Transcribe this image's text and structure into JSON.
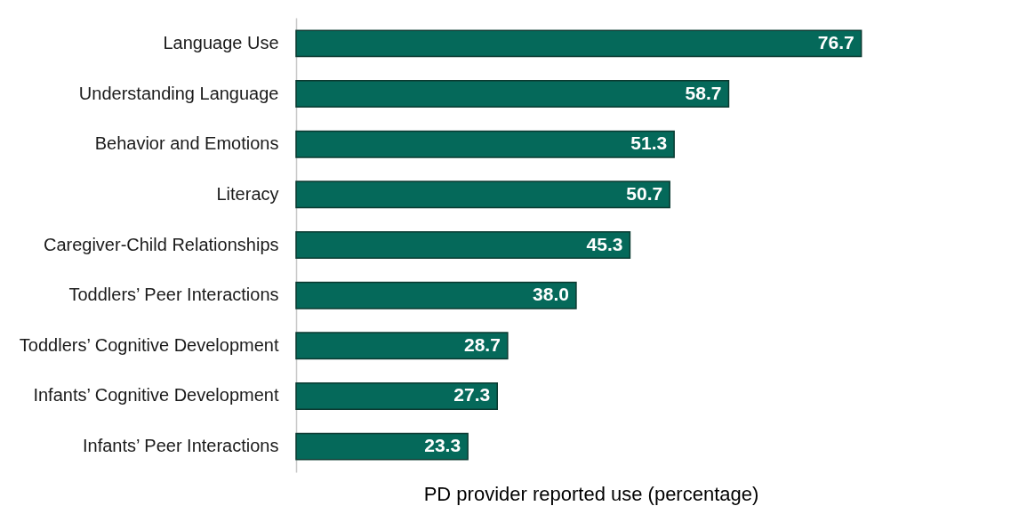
{
  "chart_data": {
    "type": "bar",
    "orientation": "horizontal",
    "xlabel": "PD provider reported use (percentage)",
    "categories": [
      "Language Use",
      "Understanding Language",
      "Behavior and Emotions",
      "Literacy",
      "Caregiver-Child Relationships",
      "Toddlers’ Peer Interactions",
      "Toddlers’ Cognitive Development",
      "Infants’ Cognitive Development",
      "Infants’ Peer Interactions"
    ],
    "values": [
      76.7,
      58.7,
      51.3,
      50.7,
      45.3,
      38.0,
      28.7,
      27.3,
      23.3
    ],
    "value_labels": [
      "76.7",
      "58.7",
      "51.3",
      "50.7",
      "45.3",
      "38.0",
      "28.7",
      "27.3",
      "23.3"
    ],
    "color": "#05695a",
    "grid": false
  }
}
